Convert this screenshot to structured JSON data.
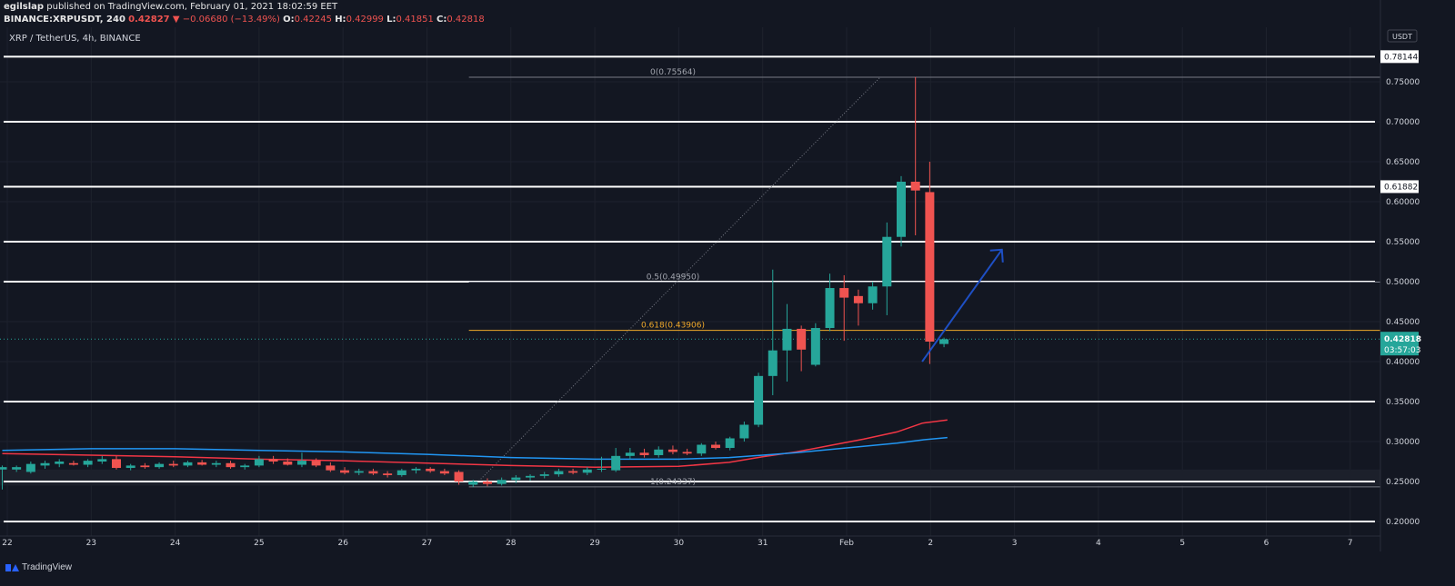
{
  "header": {
    "author": "egilslap",
    "published_text": " published on TradingView.com, February 01, 2021 18:02:59 EET",
    "ticker": "BINANCE:XRPUSDT, 240",
    "last": "0.42827",
    "change": "−0.06680 (−13.49%)",
    "open_label": "O:",
    "open": "0.42245",
    "high_label": "H:",
    "high": "0.42999",
    "low_label": "L:",
    "low": "0.41851",
    "close_label": "C:",
    "close": "0.42818",
    "symbol_desc": "XRP / TetherUS, 4h, BINANCE"
  },
  "footer": {
    "brand": "TradingView"
  },
  "colors": {
    "background": "#131722",
    "up": "#26a69a",
    "down": "#ef5350",
    "fib_line": "#787b86",
    "fib_golden": "#f0a92a",
    "level_line": "#ffffff",
    "ma_fast": "#f23645",
    "ma_slow": "#2196f3",
    "arrow": "#1e4fc4",
    "price_badge": "#26a69a"
  },
  "chart_data": {
    "type": "candlestick",
    "currency_label": "USDT",
    "y_axis": {
      "ylim": [
        0.18,
        0.82
      ],
      "tick_labels": [
        "0.75000",
        "0.70000",
        "0.65000",
        "0.60000",
        "0.55000",
        "0.50000",
        "0.45000",
        "0.40000",
        "0.35000",
        "0.30000",
        "0.25000",
        "0.20000"
      ],
      "tick_values": [
        0.75,
        0.7,
        0.65,
        0.6,
        0.55,
        0.5,
        0.45,
        0.4,
        0.35,
        0.3,
        0.25,
        0.2
      ]
    },
    "x_axis": {
      "tick_labels": [
        "22",
        "23",
        "24",
        "25",
        "26",
        "27",
        "28",
        "29",
        "30",
        "31",
        "Feb",
        "2",
        "3",
        "4",
        "5",
        "6",
        "7"
      ],
      "tick_day_index": [
        0,
        1,
        2,
        3,
        4,
        5,
        6,
        7,
        8,
        9,
        10,
        11,
        12,
        13,
        14,
        15,
        16
      ]
    },
    "horizontal_levels": [
      {
        "value": 0.78144,
        "label": "0.78144"
      },
      {
        "value": 0.7
      },
      {
        "value": 0.61882,
        "label": "0.61882"
      },
      {
        "value": 0.55
      },
      {
        "value": 0.5
      },
      {
        "value": 0.35
      },
      {
        "value": 0.25
      },
      {
        "value": 0.2
      }
    ],
    "current_price": {
      "value": 0.42818,
      "label": "0.42818",
      "countdown": "03:57:03"
    },
    "fib_retracement": {
      "start_day": 5.5,
      "end_day": 10.45,
      "levels": [
        {
          "value": 0.75564,
          "label": "0(0.75564)"
        },
        {
          "value": 0.4995,
          "label": "0.5(0.49950)"
        },
        {
          "value": 0.43906,
          "label": "0.618(0.43906)"
        },
        {
          "value": 0.24337,
          "label": "1(0.24337)"
        }
      ]
    },
    "trend_line": {
      "from": [
        5.55,
        0.2434
      ],
      "to": [
        10.4,
        0.7556
      ]
    },
    "projection_arrow": {
      "from": [
        10.9,
        0.4
      ],
      "to": [
        11.85,
        0.54
      ]
    },
    "candles": [
      [
        -0.06,
        0.265,
        0.27,
        0.24,
        0.268
      ],
      [
        0.11,
        0.265,
        0.27,
        0.262,
        0.268
      ],
      [
        0.28,
        0.262,
        0.275,
        0.26,
        0.272
      ],
      [
        0.45,
        0.27,
        0.276,
        0.266,
        0.273
      ],
      [
        0.62,
        0.272,
        0.278,
        0.268,
        0.275
      ],
      [
        0.79,
        0.273,
        0.276,
        0.27,
        0.271
      ],
      [
        0.96,
        0.271,
        0.278,
        0.268,
        0.276
      ],
      [
        1.13,
        0.275,
        0.282,
        0.272,
        0.278
      ],
      [
        1.3,
        0.278,
        0.282,
        0.265,
        0.267
      ],
      [
        1.47,
        0.267,
        0.272,
        0.264,
        0.27
      ],
      [
        1.64,
        0.27,
        0.273,
        0.266,
        0.268
      ],
      [
        1.81,
        0.268,
        0.274,
        0.266,
        0.272
      ],
      [
        1.98,
        0.272,
        0.276,
        0.268,
        0.27
      ],
      [
        2.15,
        0.27,
        0.276,
        0.268,
        0.274
      ],
      [
        2.32,
        0.274,
        0.277,
        0.27,
        0.271
      ],
      [
        2.49,
        0.271,
        0.276,
        0.268,
        0.273
      ],
      [
        2.66,
        0.273,
        0.276,
        0.266,
        0.268
      ],
      [
        2.83,
        0.268,
        0.272,
        0.265,
        0.27
      ],
      [
        3.0,
        0.27,
        0.282,
        0.268,
        0.278
      ],
      [
        3.17,
        0.278,
        0.282,
        0.272,
        0.275
      ],
      [
        3.34,
        0.275,
        0.279,
        0.27,
        0.271
      ],
      [
        3.51,
        0.271,
        0.286,
        0.268,
        0.276
      ],
      [
        3.68,
        0.276,
        0.279,
        0.268,
        0.27
      ],
      [
        3.85,
        0.27,
        0.274,
        0.262,
        0.264
      ],
      [
        4.02,
        0.264,
        0.268,
        0.259,
        0.261
      ],
      [
        4.19,
        0.261,
        0.266,
        0.258,
        0.263
      ],
      [
        4.36,
        0.263,
        0.266,
        0.258,
        0.26
      ],
      [
        4.53,
        0.26,
        0.263,
        0.255,
        0.258
      ],
      [
        4.7,
        0.258,
        0.266,
        0.256,
        0.264
      ],
      [
        4.87,
        0.264,
        0.268,
        0.26,
        0.266
      ],
      [
        5.04,
        0.266,
        0.268,
        0.261,
        0.263
      ],
      [
        5.21,
        0.263,
        0.266,
        0.258,
        0.26
      ],
      [
        5.38,
        0.262,
        0.264,
        0.246,
        0.25
      ],
      [
        5.55,
        0.246,
        0.252,
        0.243,
        0.25
      ],
      [
        5.72,
        0.25,
        0.254,
        0.244,
        0.247
      ],
      [
        5.89,
        0.247,
        0.255,
        0.245,
        0.252
      ],
      [
        6.06,
        0.252,
        0.258,
        0.248,
        0.255
      ],
      [
        6.23,
        0.255,
        0.259,
        0.251,
        0.257
      ],
      [
        6.4,
        0.257,
        0.262,
        0.254,
        0.259
      ],
      [
        6.57,
        0.259,
        0.266,
        0.256,
        0.263
      ],
      [
        6.74,
        0.263,
        0.266,
        0.259,
        0.261
      ],
      [
        6.91,
        0.261,
        0.268,
        0.258,
        0.265
      ],
      [
        7.08,
        0.265,
        0.281,
        0.262,
        0.266
      ],
      [
        7.25,
        0.264,
        0.292,
        0.262,
        0.282
      ],
      [
        7.42,
        0.282,
        0.292,
        0.278,
        0.286
      ],
      [
        7.59,
        0.286,
        0.291,
        0.28,
        0.283
      ],
      [
        7.76,
        0.283,
        0.294,
        0.28,
        0.29
      ],
      [
        7.93,
        0.29,
        0.295,
        0.284,
        0.287
      ],
      [
        8.1,
        0.287,
        0.291,
        0.283,
        0.285
      ],
      [
        8.27,
        0.285,
        0.298,
        0.282,
        0.296
      ],
      [
        8.44,
        0.296,
        0.3,
        0.29,
        0.292
      ],
      [
        8.61,
        0.292,
        0.306,
        0.289,
        0.304
      ],
      [
        8.78,
        0.304,
        0.325,
        0.3,
        0.321
      ],
      [
        8.95,
        0.321,
        0.386,
        0.318,
        0.382
      ],
      [
        9.12,
        0.382,
        0.515,
        0.358,
        0.414
      ],
      [
        9.29,
        0.414,
        0.472,
        0.375,
        0.441
      ],
      [
        9.46,
        0.441,
        0.445,
        0.388,
        0.415
      ],
      [
        9.63,
        0.396,
        0.448,
        0.394,
        0.442
      ],
      [
        9.8,
        0.442,
        0.51,
        0.438,
        0.492
      ],
      [
        9.97,
        0.492,
        0.508,
        0.426,
        0.48
      ],
      [
        10.14,
        0.482,
        0.49,
        0.445,
        0.473
      ],
      [
        10.31,
        0.473,
        0.5,
        0.465,
        0.494
      ],
      [
        10.48,
        0.494,
        0.574,
        0.458,
        0.556
      ],
      [
        10.65,
        0.556,
        0.632,
        0.544,
        0.625
      ],
      [
        10.82,
        0.625,
        0.756,
        0.558,
        0.614
      ],
      [
        10.99,
        0.612,
        0.65,
        0.397,
        0.425
      ],
      [
        11.16,
        0.422,
        0.43,
        0.418,
        0.428
      ]
    ],
    "series": [
      {
        "name": "",
        "type": "ma",
        "color": "#f23645",
        "points": [
          [
            -0.06,
            0.285
          ],
          [
            1,
            0.283
          ],
          [
            2,
            0.281
          ],
          [
            3,
            0.278
          ],
          [
            4,
            0.276
          ],
          [
            5,
            0.273
          ],
          [
            6,
            0.27
          ],
          [
            7,
            0.268
          ],
          [
            8,
            0.269
          ],
          [
            8.6,
            0.274
          ],
          [
            9,
            0.281
          ],
          [
            9.4,
            0.287
          ],
          [
            9.8,
            0.295
          ],
          [
            10.2,
            0.303
          ],
          [
            10.6,
            0.312
          ],
          [
            10.9,
            0.323
          ],
          [
            11.2,
            0.327
          ]
        ]
      },
      {
        "name": "",
        "type": "ma",
        "color": "#2196f3",
        "points": [
          [
            -0.06,
            0.289
          ],
          [
            1,
            0.291
          ],
          [
            2,
            0.291
          ],
          [
            3,
            0.289
          ],
          [
            4,
            0.287
          ],
          [
            5,
            0.284
          ],
          [
            6,
            0.28
          ],
          [
            7,
            0.278
          ],
          [
            8,
            0.278
          ],
          [
            8.6,
            0.28
          ],
          [
            9,
            0.283
          ],
          [
            9.4,
            0.286
          ],
          [
            9.8,
            0.29
          ],
          [
            10.2,
            0.294
          ],
          [
            10.6,
            0.298
          ],
          [
            10.9,
            0.302
          ],
          [
            11.2,
            0.305
          ]
        ]
      }
    ]
  }
}
